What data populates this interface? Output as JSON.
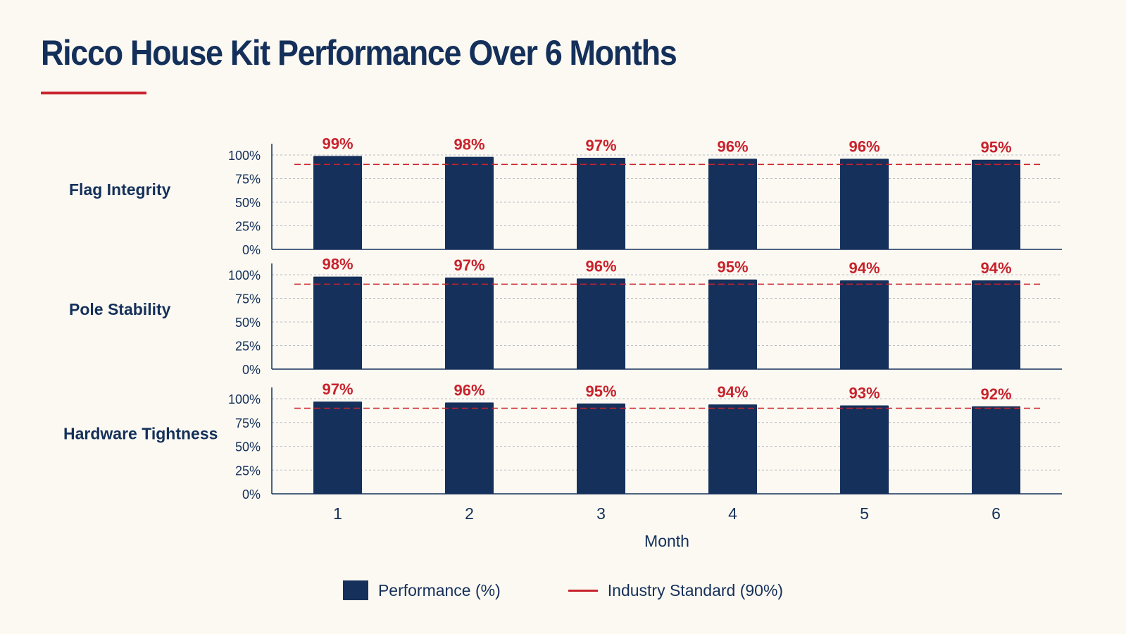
{
  "title": "Ricco House Kit Performance Over 6 Months",
  "colors": {
    "bar": "#15305b",
    "label": "#c8222c",
    "standard_line": "#c8222c",
    "text": "#14305a",
    "grid": "#b8bcc6",
    "background": "#fcf9f2"
  },
  "chart_data": {
    "type": "bar",
    "categories": [
      "1",
      "2",
      "3",
      "4",
      "5",
      "6"
    ],
    "xlabel": "Month",
    "ylim": [
      0,
      100
    ],
    "yticks": [
      "0%",
      "25%",
      "50%",
      "75%",
      "100%"
    ],
    "ytick_values": [
      0,
      25,
      50,
      75,
      100
    ],
    "reference_line": {
      "value": 90,
      "label": "Industry Standard (90%)"
    },
    "grid": true,
    "legend_position": "bottom-center",
    "series": [
      {
        "name": "Flag Integrity",
        "values": [
          99,
          98,
          97,
          96,
          96,
          95
        ],
        "data_labels": [
          "99%",
          "98%",
          "97%",
          "96%",
          "96%",
          "95%"
        ]
      },
      {
        "name": "Pole Stability",
        "values": [
          98,
          97,
          96,
          95,
          94,
          94
        ],
        "data_labels": [
          "98%",
          "97%",
          "96%",
          "95%",
          "94%",
          "94%"
        ]
      },
      {
        "name": "Hardware Tightness",
        "values": [
          97,
          96,
          95,
          94,
          93,
          92
        ],
        "data_labels": [
          "97%",
          "96%",
          "95%",
          "94%",
          "93%",
          "92%"
        ]
      }
    ]
  },
  "legend": {
    "performance_label": "Performance (%)",
    "standard_label": "Industry Standard (90%)"
  }
}
